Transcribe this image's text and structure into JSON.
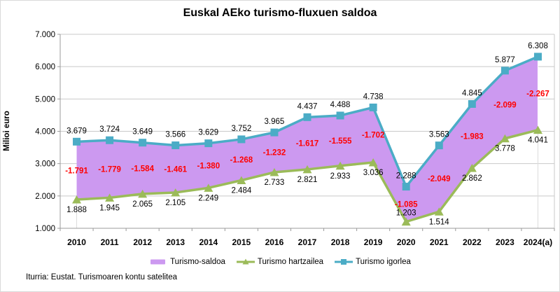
{
  "title": "Euskal AEko turismo-fluxuen saldoa",
  "y_axis_title": "Milioi euro",
  "source": "Iturria: Eustat. Turismoaren kontu satelitea",
  "colors": {
    "area": "#CC99F0",
    "green": "#9BBB59",
    "blue": "#4BACC6",
    "red_label": "#FF0000",
    "gridline": "#C9C9C9",
    "axis": "#9B9B9B",
    "edge_line": "#DCDCDC",
    "text": "#000000"
  },
  "chart_data": {
    "type": "area",
    "subtype": "band-between-lines-with-data-labels",
    "title": "Euskal AEko turismo-fluxuen saldoa",
    "xlabel": "",
    "ylabel": "Milioi euro",
    "ylim": [
      1000,
      7000
    ],
    "ytick_step": 1000,
    "ytick_labels": [
      "1.000",
      "2.000",
      "3.000",
      "4.000",
      "5.000",
      "6.000",
      "7.000"
    ],
    "grid": true,
    "legend_position": "bottom",
    "categories": [
      "2010",
      "2011",
      "2012",
      "2013",
      "2014",
      "2015",
      "2016",
      "2017",
      "2018",
      "2019",
      "2020",
      "2021",
      "2022",
      "2023",
      "2024(a)"
    ],
    "series": [
      {
        "name": "Turismo-saldoa",
        "type": "area-band",
        "band_between": [
          "Turismo hartzailea",
          "Turismo igorlea"
        ],
        "color": "#CC99F0",
        "label_color": "#FF0000",
        "values": [
          -1791,
          -1779,
          -1584,
          -1461,
          -1380,
          -1268,
          -1232,
          -1617,
          -1555,
          -1702,
          -1085,
          -2049,
          -1983,
          -2099,
          -2267
        ],
        "labels": [
          "-1.791",
          "-1.779",
          "-1.584",
          "-1.461",
          "-1.380",
          "-1.268",
          "-1.232",
          "-1.617",
          "-1.555",
          "-1.702",
          "-1.085",
          "-2.049",
          "-1.983",
          "-2.099",
          "-2.267"
        ]
      },
      {
        "name": "Turismo hartzailea",
        "type": "line",
        "marker": "triangle",
        "color": "#9BBB59",
        "values": [
          1888,
          1945,
          2065,
          2105,
          2249,
          2484,
          2733,
          2821,
          2933,
          3036,
          1203,
          1514,
          2862,
          3778,
          4041
        ],
        "labels": [
          "1.888",
          "1.945",
          "2.065",
          "2.105",
          "2.249",
          "2.484",
          "2.733",
          "2.821",
          "2.933",
          "3.036",
          "1.203",
          "1.514",
          "2.862",
          "3.778",
          "4.041"
        ]
      },
      {
        "name": "Turismo igorlea",
        "type": "line",
        "marker": "square",
        "color": "#4BACC6",
        "values": [
          3679,
          3724,
          3649,
          3566,
          3629,
          3752,
          3965,
          4437,
          4488,
          4738,
          2288,
          3563,
          4845,
          5877,
          6308
        ],
        "labels": [
          "3.679",
          "3.724",
          "3.649",
          "3.566",
          "3.629",
          "3.752",
          "3.965",
          "4.437",
          "4.488",
          "4.738",
          "2.288",
          "3.563",
          "4.845",
          "5.877",
          "6.308"
        ]
      }
    ]
  },
  "legend": {
    "items": [
      {
        "label": "Turismo-saldoa",
        "swatch": "area",
        "color": "#CC99F0"
      },
      {
        "label": "Turismo hartzailea",
        "swatch": "line-triangle",
        "color": "#9BBB59"
      },
      {
        "label": "Turismo igorlea",
        "swatch": "line-square",
        "color": "#4BACC6"
      }
    ]
  }
}
